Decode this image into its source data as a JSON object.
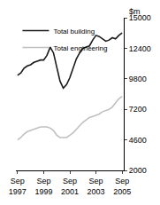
{
  "chart_data": {
    "type": "line",
    "y_label": "$m",
    "categories": [
      "Sep 1997",
      null,
      null,
      null,
      null,
      null,
      null,
      null,
      "Sep 1999",
      null,
      null,
      null,
      null,
      null,
      null,
      null,
      "Sep 2001",
      null,
      null,
      null,
      null,
      null,
      null,
      null,
      "Sep 2003",
      null,
      null,
      null,
      null,
      null,
      null,
      null,
      "Sep 2005"
    ],
    "series": [
      {
        "name": "Total building",
        "color": "#1a1a1a",
        "values": [
          10100,
          10300,
          10700,
          10900,
          11000,
          11200,
          11300,
          11400,
          11400,
          11800,
          12500,
          12000,
          10800,
          9600,
          9000,
          9300,
          9900,
          10700,
          11500,
          12000,
          12400,
          12500,
          12600,
          13100,
          13500,
          13400,
          13200,
          13000,
          13100,
          13300,
          13200,
          13500,
          13700
        ]
      },
      {
        "name": "Total engineering",
        "color": "#c0c0c0",
        "values": [
          4600,
          4800,
          5100,
          5300,
          5400,
          5500,
          5600,
          5700,
          5700,
          5700,
          5600,
          5400,
          5000,
          4800,
          4800,
          4800,
          5000,
          5200,
          5500,
          5800,
          6100,
          6300,
          6500,
          6600,
          6700,
          6800,
          7000,
          7100,
          7200,
          7400,
          7800,
          8100,
          8300
        ]
      }
    ],
    "ylim": [
      2000,
      15000
    ],
    "yticks": [
      2000,
      4600,
      7200,
      9800,
      12400,
      15000
    ],
    "legend": "top-left",
    "grid": false
  }
}
